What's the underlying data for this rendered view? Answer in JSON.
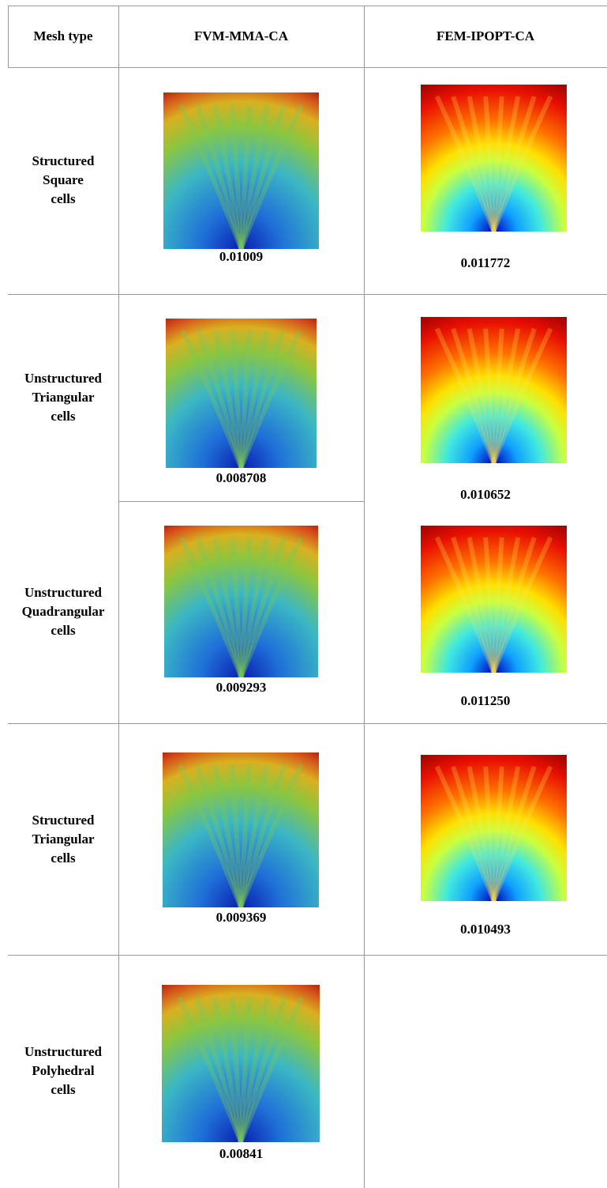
{
  "table": {
    "header": [
      "Mesh type",
      "FVM-MMA-CA",
      "FEM-IPOPT-CA"
    ],
    "rows": [
      {
        "mesh_type": [
          "Structured",
          "Square",
          "cells"
        ],
        "values": [
          "0.01009",
          "0.011772"
        ]
      },
      {
        "mesh_type": [
          "Unstructured",
          "Triangular",
          "cells"
        ],
        "values": [
          "0.008708",
          "0.010652"
        ]
      },
      {
        "mesh_type": [
          "Unstructured",
          "Quadrangular",
          "cells"
        ],
        "values": [
          "0.009293",
          "0.011250"
        ]
      },
      {
        "mesh_type": [
          "Structured",
          "Triangular",
          "cells"
        ],
        "values": [
          "0.009369",
          "0.010493"
        ]
      },
      {
        "mesh_type": [
          "Unstructured",
          "Polyhedral",
          "cells"
        ],
        "values": [
          "0.00841"
        ]
      }
    ]
  }
}
